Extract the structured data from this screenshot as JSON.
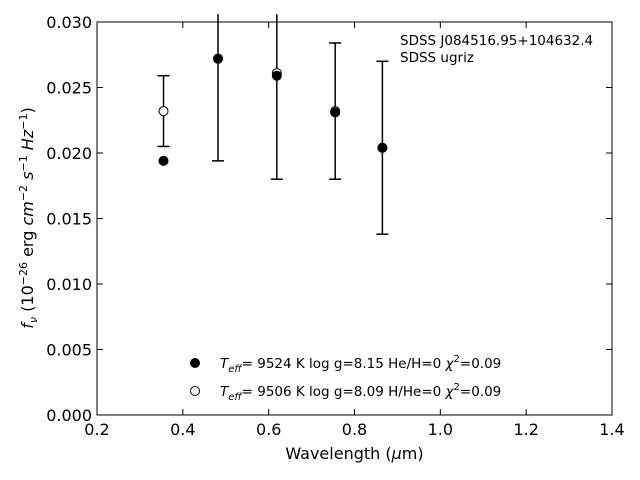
{
  "chart_data": {
    "type": "scatter",
    "xlabel": "Wavelength (μm)",
    "ylabel": "f_ν (10^−26 erg cm^−2 s^−1 Hz^−1)",
    "xlim": [
      0.2,
      1.4
    ],
    "ylim": [
      0.0,
      0.03
    ],
    "xticks": [
      "0.2",
      "0.4",
      "0.6",
      "0.8",
      "1.0",
      "1.2",
      "1.4"
    ],
    "yticks": [
      "0.000",
      "0.005",
      "0.010",
      "0.015",
      "0.020",
      "0.025",
      "0.030"
    ],
    "annotations": [
      "SDSS J084516.95+104632.4",
      "SDSS ugriz"
    ],
    "grid": false,
    "legend_position": "lower-center",
    "observed": [
      {
        "x": 0.355,
        "y": 0.0232,
        "yerr": 0.0027
      },
      {
        "x": 0.482,
        "y": 0.0272,
        "yerr": 0.0078
      },
      {
        "x": 0.619,
        "y": 0.026,
        "yerr": 0.008
      },
      {
        "x": 0.755,
        "y": 0.0232,
        "yerr": 0.0052
      },
      {
        "x": 0.865,
        "y": 0.0204,
        "yerr": 0.0066
      }
    ],
    "series": [
      {
        "marker": "filled",
        "legend_teff": "9524 K",
        "legend_logg": "log g=8.15",
        "legend_comp": "He/H=0",
        "legend_chi2": "=0.09",
        "x": [
          0.355,
          0.482,
          0.619,
          0.755,
          0.865
        ],
        "y": [
          0.0194,
          0.0272,
          0.0259,
          0.0231,
          0.0204
        ]
      },
      {
        "marker": "open",
        "legend_teff": "9506 K",
        "legend_logg": "log g=8.09",
        "legend_comp": "H/He=0",
        "legend_chi2": "=0.09",
        "x": [
          0.355,
          0.482,
          0.619,
          0.755,
          0.865
        ],
        "y": [
          0.0232,
          0.0272,
          0.0261,
          0.0232,
          0.0204
        ]
      }
    ]
  }
}
